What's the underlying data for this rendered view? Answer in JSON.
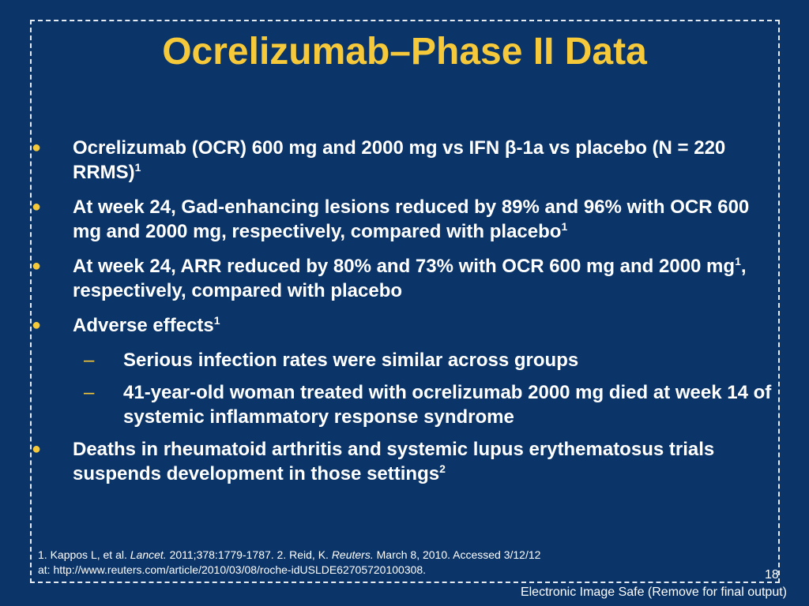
{
  "slide": {
    "title": "Ocrelizumab–Phase II Data",
    "bullet_symbol": "●",
    "dash_symbol": "–",
    "bullets": [
      {
        "text": "Ocrelizumab (OCR) 600 mg and 2000 mg vs IFN β-1a vs placebo (N = 220 RRMS)",
        "sup": "1"
      },
      {
        "text": "At week 24, Gad-enhancing lesions reduced by 89% and 96% with OCR 600 mg and 2000 mg, respectively, compared with placebo",
        "sup": "1"
      },
      {
        "text_a": "At week 24, ARR reduced by 80% and 73% with OCR 600 mg and 2000 mg",
        "sup": "1",
        "text_b": ", respectively, compared with placebo"
      },
      {
        "text": "Adverse effects",
        "sup": "1"
      },
      {
        "text": "Deaths in rheumatoid arthritis and systemic lupus erythematosus trials suspends development in those settings",
        "sup": "2"
      }
    ],
    "subbullets": [
      "Serious infection rates were similar across groups",
      "41-year-old woman treated with ocrelizumab 2000 mg died at week 14 of systemic inflammatory response syndrome"
    ],
    "references": {
      "r1_prefix": "1. Kappos L, et al. ",
      "r1_journal": "Lancet.",
      "r1_rest": " 2011;378:1779-1787. 2. Reid, K. ",
      "r2_source": "Reuters.",
      "r2_rest": " March 8, 2010. Accessed 3/12/12",
      "line2": "at: http://www.reuters.com/article/2010/03/08/roche-idUSLDE62705720100308."
    },
    "slide_number": "18",
    "footer_note": "Electronic Image Safe (Remove for final output)"
  },
  "colors": {
    "background": "#0b3468",
    "title": "#f5c93a",
    "bullet": "#f5c93a",
    "text": "#ffffff"
  }
}
